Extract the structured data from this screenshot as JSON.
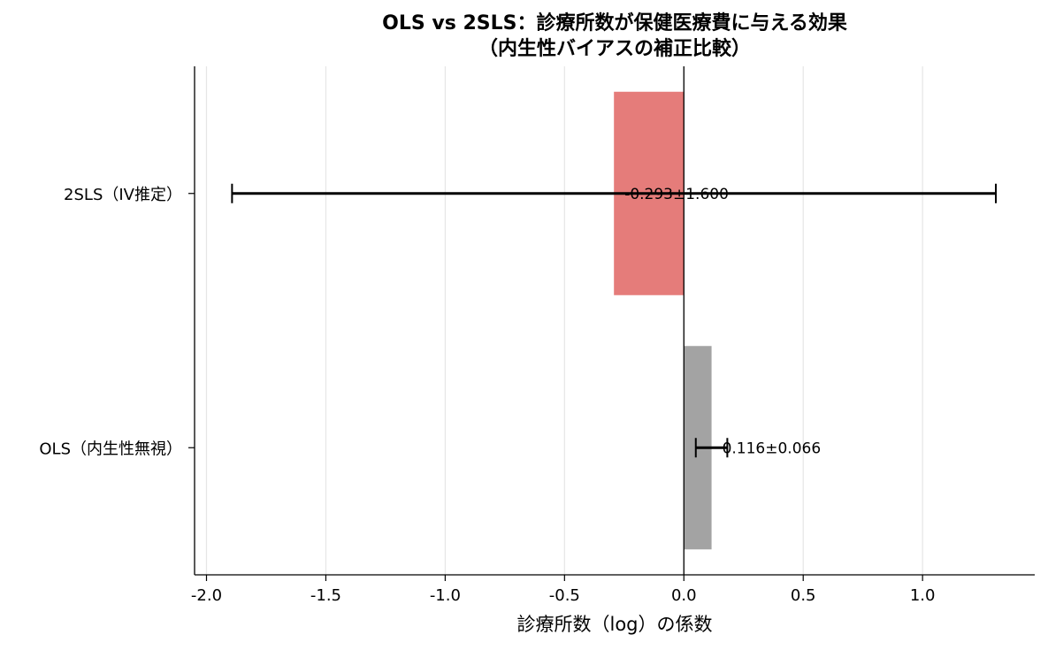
{
  "chart_data": {
    "type": "bar",
    "orientation": "horizontal",
    "title": "OLS vs 2SLS：診療所数が保健医療費に与える効果",
    "subtitle": "（内生性バイアスの補正比較）",
    "xlabel": "診療所数（log）の係数",
    "ylabel": "",
    "xlim": [
      -2.05,
      1.47
    ],
    "xticks": [
      -2.0,
      -1.5,
      -1.0,
      -0.5,
      0.0,
      0.5,
      1.0
    ],
    "xtick_labels": [
      "-2.0",
      "-1.5",
      "-1.0",
      "-0.5",
      "0.0",
      "0.5",
      "1.0"
    ],
    "grid": "vertical",
    "legend": "none",
    "categories": [
      "2SLS（IV推定）",
      "OLS（内生性無視）"
    ],
    "values": [
      -0.293,
      0.116
    ],
    "errors": [
      1.6,
      0.066
    ],
    "labels": [
      "-0.293±1.600",
      "0.116±0.066"
    ],
    "colors": [
      "#e57c7a",
      "#a3a3a3"
    ]
  }
}
